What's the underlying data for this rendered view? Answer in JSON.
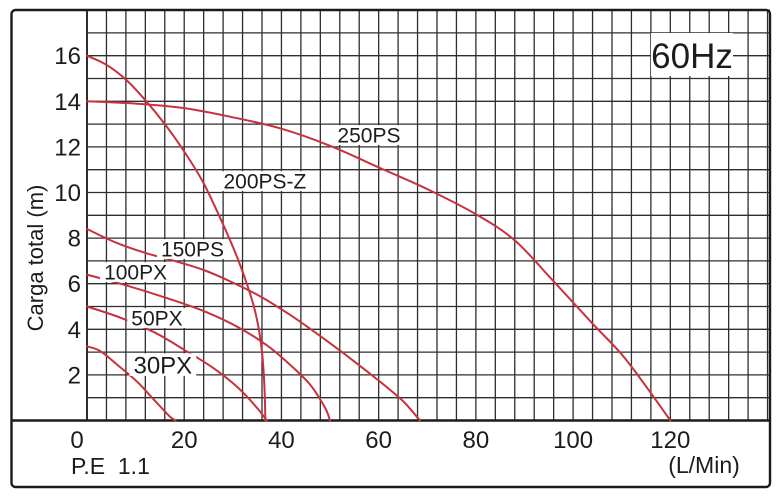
{
  "chart_data": {
    "type": "line",
    "frequency_label": "60Hz",
    "ylabel": "Carga total (m)",
    "xlabel": "(L/Min)",
    "footnote": "P.E  1.1",
    "x_ticks": [
      0,
      20,
      40,
      60,
      80,
      100,
      120
    ],
    "y_ticks": [
      2,
      4,
      6,
      8,
      10,
      12,
      14,
      16
    ],
    "xlim": [
      0,
      140.5
    ],
    "ylim": [
      0,
      18
    ],
    "x_minor_step": 4,
    "y_minor_step": 1,
    "grid": true,
    "series": [
      {
        "name": "30PX",
        "points": [
          [
            0,
            3.25
          ],
          [
            2.7,
            3.05
          ],
          [
            6.2,
            2.45
          ],
          [
            10.3,
            1.7
          ],
          [
            13.6,
            0.95
          ],
          [
            16.9,
            0.2
          ],
          [
            18.2,
            0
          ]
        ],
        "label_at": [
          15.6,
          2.45
        ],
        "label_size": 24
      },
      {
        "name": "50PX",
        "points": [
          [
            0,
            5.0
          ],
          [
            7,
            4.5
          ],
          [
            14,
            3.85
          ],
          [
            20,
            3.1
          ],
          [
            26,
            2.3
          ],
          [
            31,
            1.45
          ],
          [
            35,
            0.55
          ],
          [
            37,
            0
          ]
        ],
        "label_at": [
          14.4,
          4.49
        ],
        "label_size": 21
      },
      {
        "name": "100PX",
        "points": [
          [
            0,
            6.4
          ],
          [
            8,
            5.93
          ],
          [
            16,
            5.4
          ],
          [
            24,
            4.8
          ],
          [
            31,
            4.1
          ],
          [
            37,
            3.3
          ],
          [
            42,
            2.4
          ],
          [
            46,
            1.55
          ],
          [
            49,
            0.55
          ],
          [
            50,
            0
          ]
        ],
        "label_at": [
          10.0,
          6.51
        ],
        "label_size": 21
      },
      {
        "name": "150PS",
        "points": [
          [
            0,
            8.4
          ],
          [
            6,
            7.8
          ],
          [
            12,
            7.35
          ],
          [
            18,
            7.0
          ],
          [
            24,
            6.6
          ],
          [
            30,
            6.05
          ],
          [
            36,
            5.4
          ],
          [
            42,
            4.6
          ],
          [
            48,
            3.7
          ],
          [
            54,
            2.75
          ],
          [
            60,
            1.75
          ],
          [
            65,
            0.85
          ],
          [
            68.5,
            0
          ]
        ],
        "label_at": [
          21.7,
          7.52
        ],
        "label_size": 21
      },
      {
        "name": "200PS-Z",
        "points": [
          [
            0,
            16
          ],
          [
            4,
            15.6
          ],
          [
            8,
            14.95
          ],
          [
            12,
            14.05
          ],
          [
            16,
            13.0
          ],
          [
            20,
            11.8
          ],
          [
            24,
            10.4
          ],
          [
            28,
            8.6
          ],
          [
            31,
            7.1
          ],
          [
            33.5,
            5.6
          ],
          [
            35,
            4.4
          ],
          [
            36,
            3.0
          ],
          [
            36.5,
            1.5
          ],
          [
            36.7,
            0
          ]
        ],
        "label_at": [
          36.6,
          10.5
        ],
        "label_size": 21
      },
      {
        "name": "250PS",
        "points": [
          [
            0,
            14
          ],
          [
            10,
            13.9
          ],
          [
            20,
            13.7
          ],
          [
            30,
            13.3
          ],
          [
            40,
            12.8
          ],
          [
            50,
            12.05
          ],
          [
            60,
            11.1
          ],
          [
            70,
            10.15
          ],
          [
            80,
            9.05
          ],
          [
            88,
            7.9
          ],
          [
            96,
            6.1
          ],
          [
            104,
            4.25
          ],
          [
            110,
            2.9
          ],
          [
            115,
            1.5
          ],
          [
            120,
            0
          ]
        ],
        "label_at": [
          58.0,
          12.52
        ],
        "label_size": 21
      }
    ],
    "colors": {
      "curve": "#c8313e",
      "grid": "#2e2e2e",
      "frame": "#1b1b1b",
      "text": "#1c1c1c",
      "bg": "#ffffff"
    }
  }
}
